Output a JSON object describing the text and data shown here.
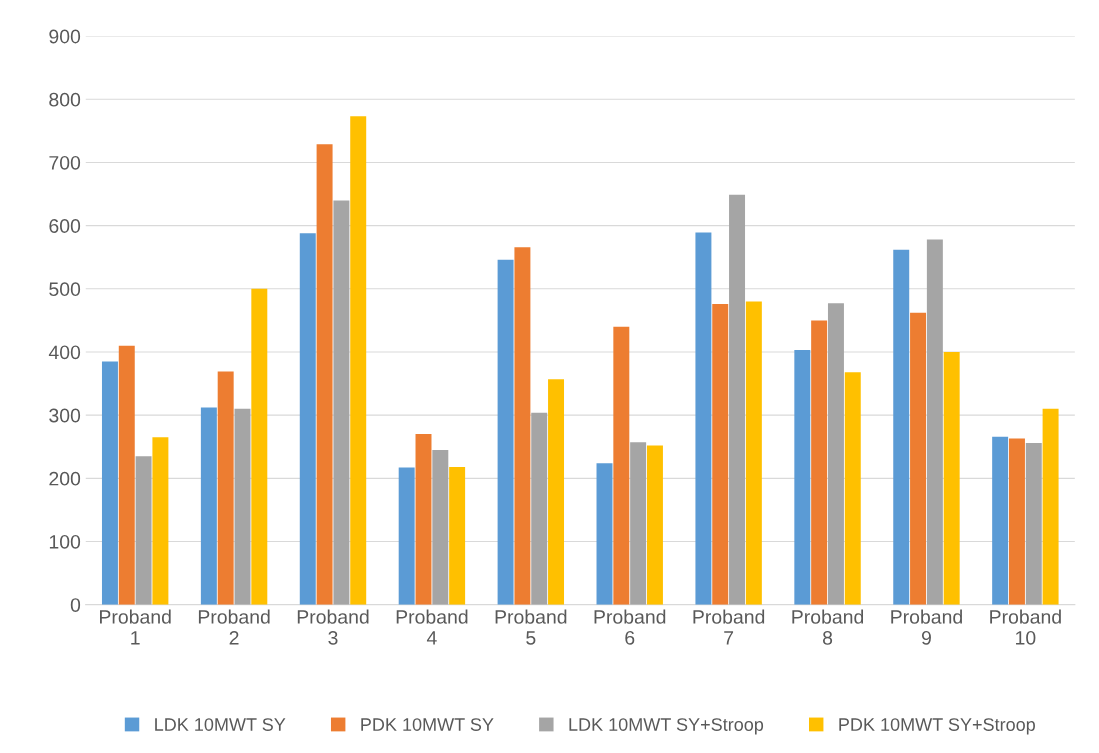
{
  "chart_data": {
    "type": "bar",
    "categories": [
      "Proband\n1",
      "Proband\n2",
      "Proband\n3",
      "Proband\n4",
      "Proband\n5",
      "Proband\n6",
      "Proband\n7",
      "Proband\n8",
      "Proband\n9",
      "Proband\n10"
    ],
    "series": [
      {
        "name": "LDK 10MWT SY",
        "color": "#5b9bd5",
        "values": [
          385,
          312,
          588,
          217,
          546,
          224,
          589,
          403,
          562,
          266
        ]
      },
      {
        "name": "PDK 10MWT SY",
        "color": "#ed7d31",
        "values": [
          410,
          369,
          729,
          270,
          566,
          440,
          476,
          450,
          462,
          263
        ]
      },
      {
        "name": "LDK 10MWT SY+Stroop",
        "color": "#a5a5a5",
        "values": [
          235,
          310,
          640,
          245,
          304,
          257,
          649,
          477,
          578,
          256
        ]
      },
      {
        "name": "PDK 10MWT SY+Stroop",
        "color": "#ffc000",
        "values": [
          265,
          500,
          773,
          218,
          357,
          252,
          480,
          368,
          400,
          310
        ]
      }
    ],
    "ylim": [
      0,
      900
    ],
    "yticks": [
      0,
      100,
      200,
      300,
      400,
      500,
      600,
      700,
      800,
      900
    ],
    "grid": "y",
    "legend": "bottom"
  }
}
